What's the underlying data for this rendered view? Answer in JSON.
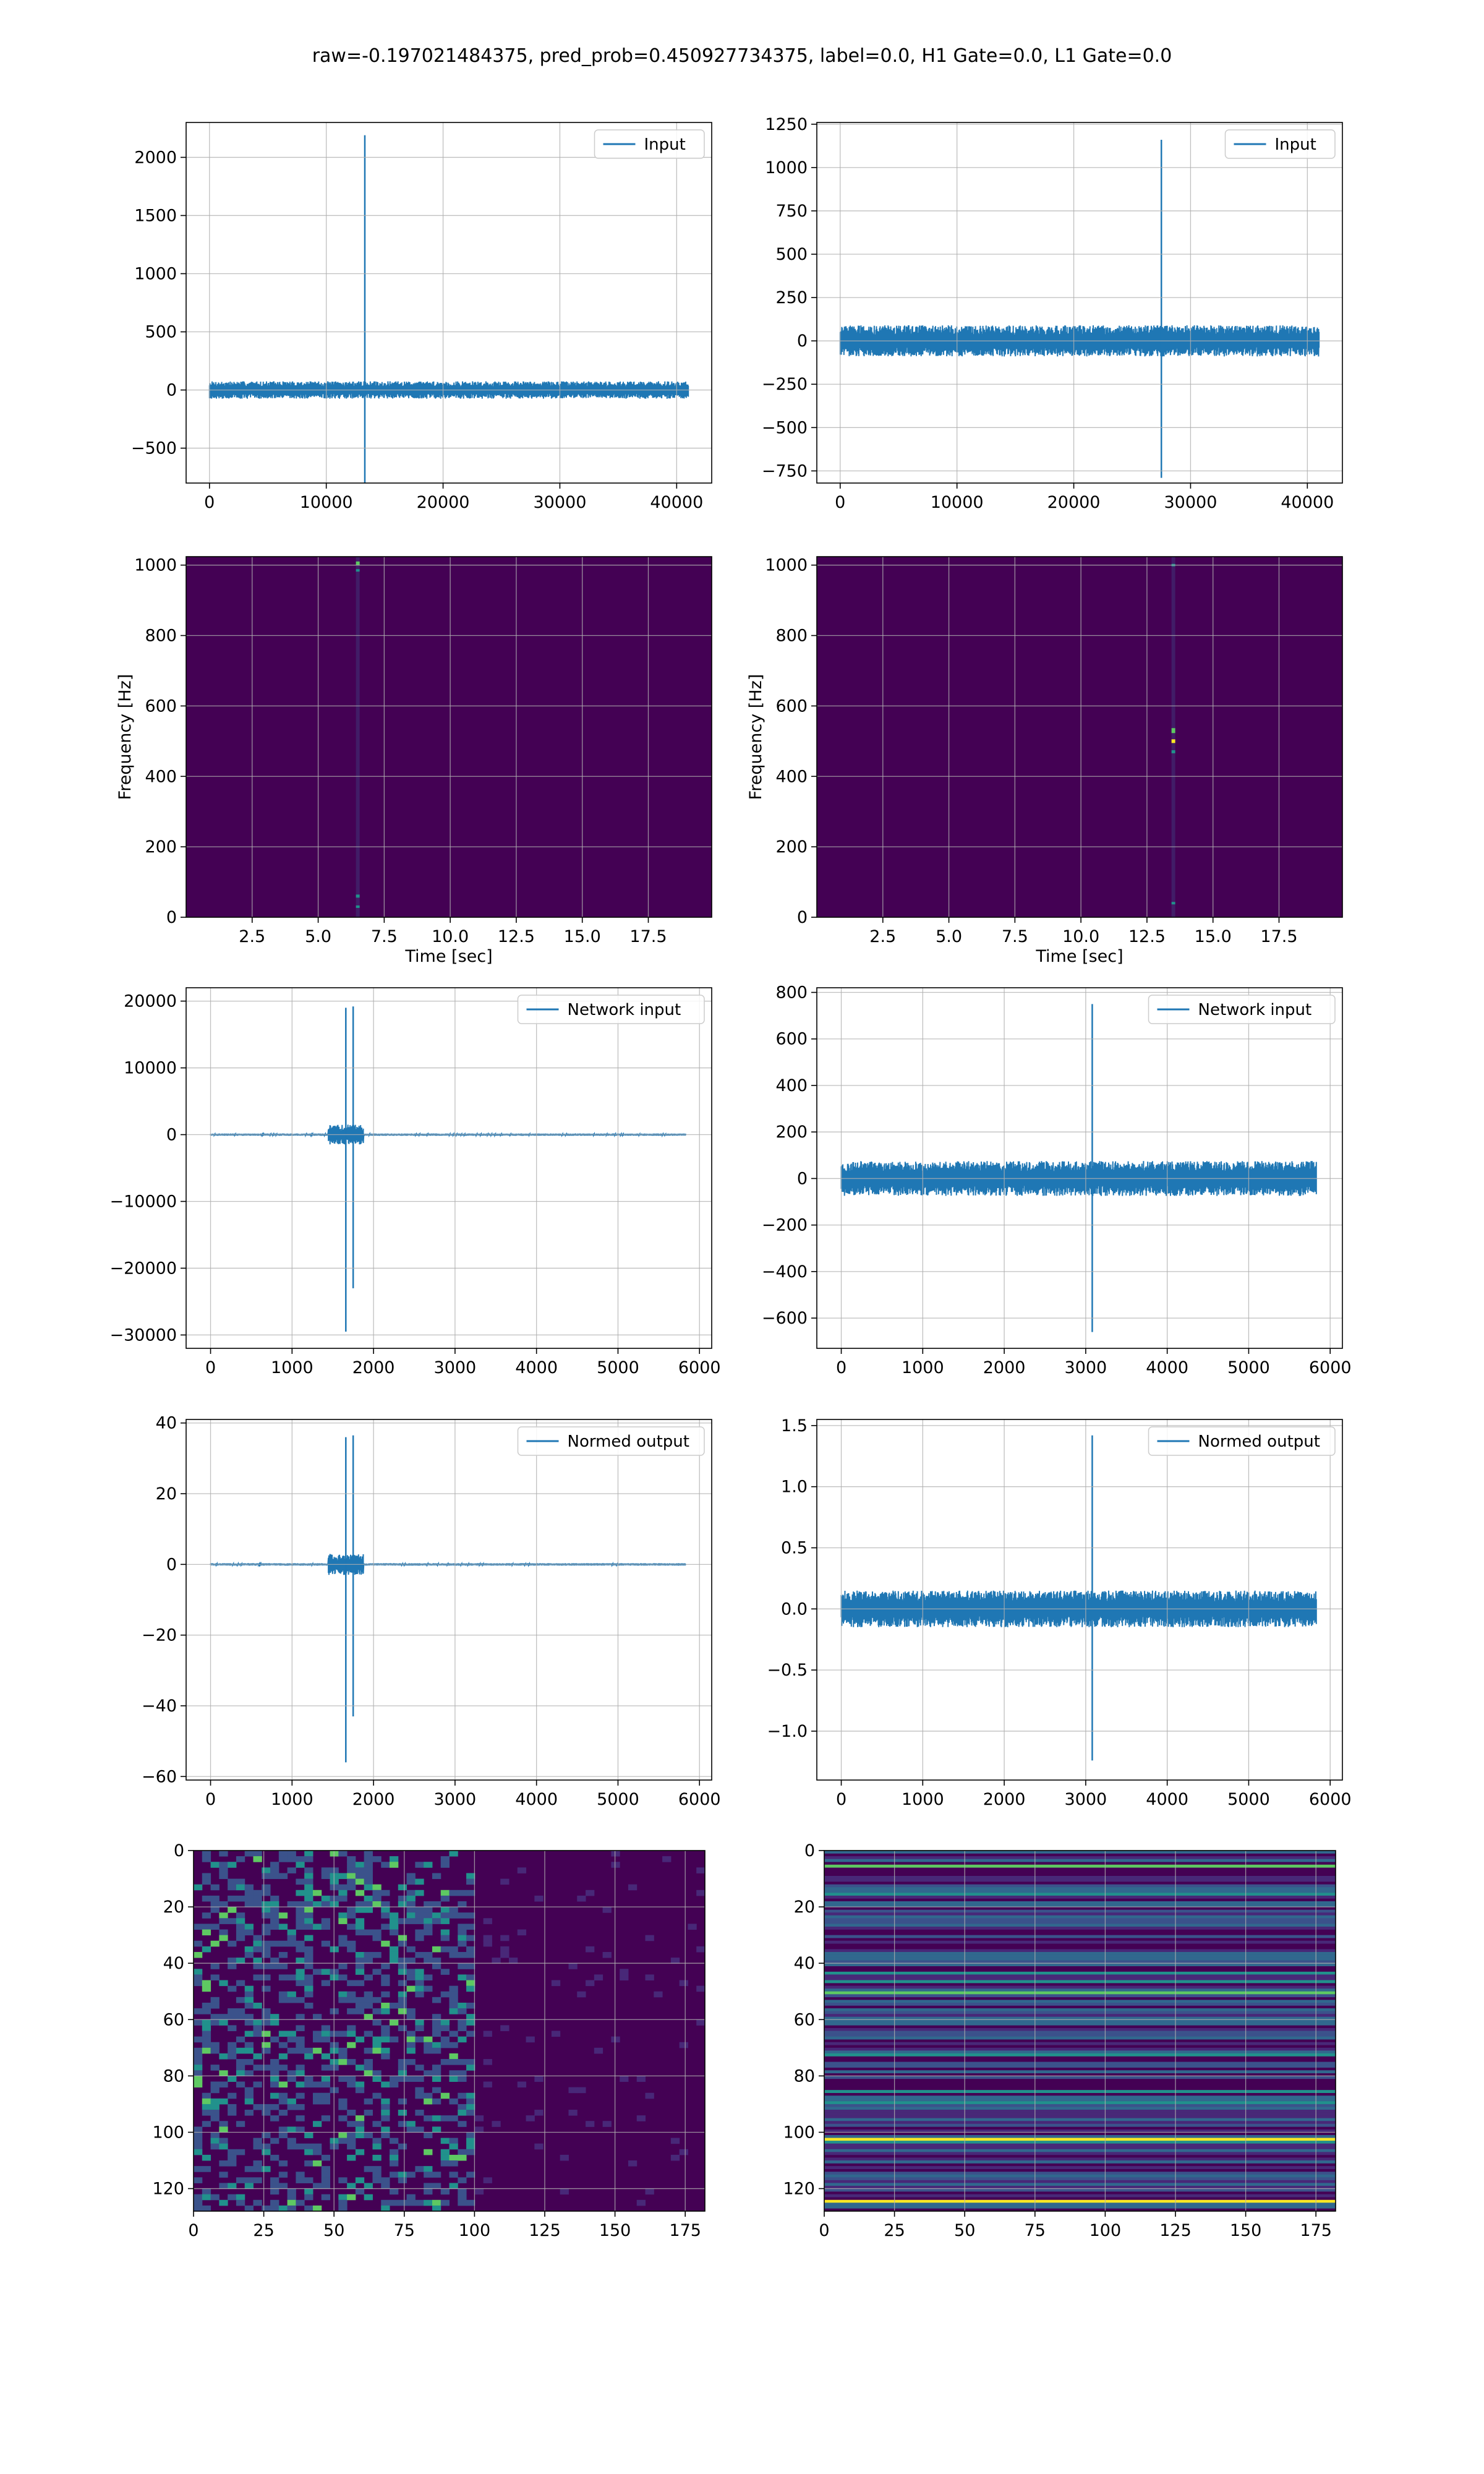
{
  "figure_title": "raw=-0.197021484375, pred_prob=0.450927734375, label=0.0, H1 Gate=0.0, L1 Gate=0.0",
  "colors": {
    "line": "#1f77b4",
    "grid": "#b0b0b0",
    "spec_bg": "#440154",
    "spec_teal": "#21918c",
    "spec_green": "#5ec962",
    "spec_yellow": "#fde725",
    "spec_blue": "#3b528b"
  },
  "chart_data": [
    {
      "id": "input-h1",
      "type": "line",
      "legend": "Input",
      "xlim": [
        -2000,
        43000
      ],
      "ylim": [
        -800,
        2300
      ],
      "xticks": [
        0,
        10000,
        20000,
        30000,
        40000
      ],
      "yticks": [
        -500,
        0,
        500,
        1000,
        1500,
        2000
      ],
      "xlabel": "",
      "ylabel": "",
      "signal": {
        "x_max": 41000,
        "noise_amp": 75,
        "spike_x": 13300,
        "spike_top": 2190,
        "spike_bottom": -810
      }
    },
    {
      "id": "input-l1",
      "type": "line",
      "legend": "Input",
      "xlim": [
        -2000,
        43000
      ],
      "ylim": [
        -820,
        1260
      ],
      "xticks": [
        0,
        10000,
        20000,
        30000,
        40000
      ],
      "yticks": [
        -750,
        -500,
        -250,
        0,
        250,
        500,
        750,
        1000,
        1250
      ],
      "xlabel": "",
      "ylabel": "",
      "signal": {
        "x_max": 41000,
        "noise_amp": 90,
        "spike_x": 27500,
        "spike_top": 1160,
        "spike_bottom": -790
      }
    },
    {
      "id": "spec-h1",
      "type": "heatmap",
      "xlim": [
        0,
        19.9
      ],
      "ylim": [
        0,
        1024
      ],
      "xticks": [
        2.5,
        5.0,
        7.5,
        10.0,
        12.5,
        15.0,
        17.5
      ],
      "yticks": [
        0,
        200,
        400,
        600,
        800,
        1000
      ],
      "xlabel": "Time [sec]",
      "ylabel": "Frequency [Hz]",
      "event_time": 6.5
    },
    {
      "id": "spec-l1",
      "type": "heatmap",
      "xlim": [
        0,
        19.9
      ],
      "ylim": [
        0,
        1024
      ],
      "xticks": [
        2.5,
        5.0,
        7.5,
        10.0,
        12.5,
        15.0,
        17.5
      ],
      "yticks": [
        0,
        200,
        400,
        600,
        800,
        1000
      ],
      "xlabel": "Time [sec]",
      "ylabel": "Frequency [Hz]",
      "event_time": 13.5
    },
    {
      "id": "network-h1",
      "type": "line",
      "legend": "Network input",
      "xlim": [
        -300,
        6150
      ],
      "ylim": [
        -32000,
        22000
      ],
      "xticks": [
        0,
        1000,
        2000,
        3000,
        4000,
        5000,
        6000
      ],
      "yticks": [
        -30000,
        -20000,
        -10000,
        0,
        10000,
        20000
      ],
      "xlabel": "",
      "ylabel": "",
      "signal": {
        "x_max": 5830,
        "noise_amp": 150,
        "spike_x": 1660,
        "spike_top": 19000,
        "spike_bottom": -29500,
        "spike2_x": 1750,
        "spike2_top": 19200,
        "spike2_bottom": -23000,
        "burst_amp": 1500
      }
    },
    {
      "id": "network-l1",
      "type": "line",
      "legend": "Network input",
      "xlim": [
        -300,
        6150
      ],
      "ylim": [
        -730,
        820
      ],
      "xticks": [
        0,
        1000,
        2000,
        3000,
        4000,
        5000,
        6000
      ],
      "yticks": [
        -600,
        -400,
        -200,
        0,
        200,
        400,
        600,
        800
      ],
      "xlabel": "",
      "ylabel": "",
      "signal": {
        "x_max": 5830,
        "noise_amp": 75,
        "spike_x": 3080,
        "spike_top": 750,
        "spike_bottom": -660
      }
    },
    {
      "id": "normed-h1",
      "type": "line",
      "legend": "Normed output",
      "xlim": [
        -300,
        6150
      ],
      "ylim": [
        -61,
        41
      ],
      "xticks": [
        0,
        1000,
        2000,
        3000,
        4000,
        5000,
        6000
      ],
      "yticks": [
        -60,
        -40,
        -20,
        0,
        20,
        40
      ],
      "xlabel": "",
      "ylabel": "",
      "signal": {
        "x_max": 5830,
        "noise_amp": 0.3,
        "spike_x": 1660,
        "spike_top": 36,
        "spike_bottom": -56,
        "spike2_x": 1750,
        "spike2_top": 36.5,
        "spike2_bottom": -43,
        "burst_amp": 3
      }
    },
    {
      "id": "normed-l1",
      "type": "line",
      "legend": "Normed output",
      "xlim": [
        -300,
        6150
      ],
      "ylim": [
        -1.4,
        1.55
      ],
      "xticks": [
        0,
        1000,
        2000,
        3000,
        4000,
        5000,
        6000
      ],
      "yticks": [
        -1.0,
        -0.5,
        0.0,
        0.5,
        1.0,
        1.5
      ],
      "xlabel": "",
      "ylabel": "",
      "signal": {
        "x_max": 5830,
        "noise_amp": 0.15,
        "spike_x": 3080,
        "spike_top": 1.42,
        "spike_bottom": -1.24
      }
    },
    {
      "id": "features-h1",
      "type": "heatmap",
      "xlim": [
        0,
        182
      ],
      "ylim": [
        128,
        0
      ],
      "xticks": [
        0,
        25,
        50,
        75,
        100,
        125,
        150,
        175
      ],
      "yticks": [
        0,
        20,
        40,
        60,
        80,
        100,
        120
      ],
      "xlabel": "",
      "ylabel": "",
      "active_until": 100
    },
    {
      "id": "features-l1",
      "type": "heatmap",
      "xlim": [
        0,
        182
      ],
      "ylim": [
        128,
        0
      ],
      "xticks": [
        0,
        25,
        50,
        75,
        100,
        125,
        150,
        175
      ],
      "yticks": [
        0,
        20,
        40,
        60,
        80,
        100,
        120
      ],
      "xlabel": "",
      "ylabel": "",
      "bright_rows": [
        5,
        50,
        102,
        124
      ]
    }
  ]
}
